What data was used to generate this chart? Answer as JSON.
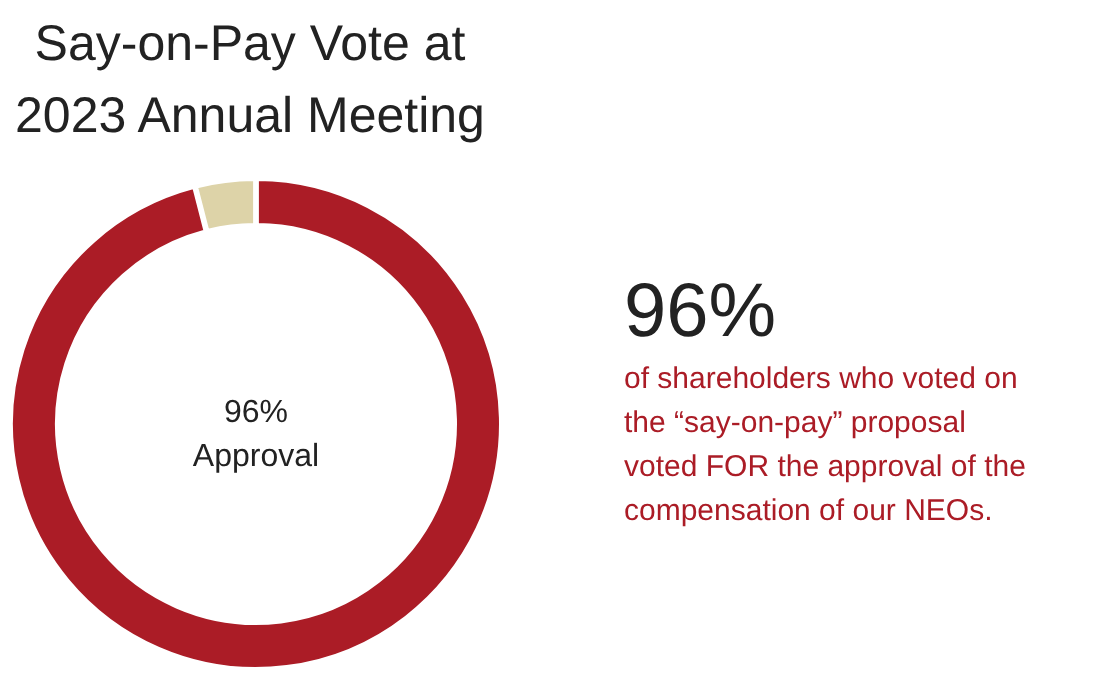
{
  "chart_data": {
    "type": "donut",
    "title": "Say-on-Pay Vote at 2023 Annual Meeting",
    "categories": [
      null,
      null
    ],
    "values": [
      96,
      4
    ],
    "colors": [
      "#ab1c26",
      "#ddd3a8"
    ],
    "annotations": [
      "96% Approval",
      "96%",
      "of shareholders who voted on the “say-on-pay” proposal voted FOR the approval of the compensation of our NEOs."
    ]
  }
}
